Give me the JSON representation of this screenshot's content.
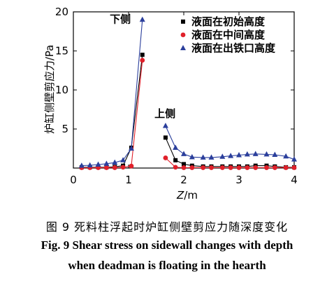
{
  "chart_data": {
    "type": "line",
    "xlabel_var": "Z",
    "xlabel_unit": "/m",
    "ylabel": "炉缸侧壁剪应力/Pa",
    "xlim": [
      0,
      4
    ],
    "ylim": [
      0,
      20
    ],
    "xticks": [
      "0",
      "1",
      "2",
      "3",
      "4"
    ],
    "yticks": [
      "5",
      "10",
      "15",
      "20"
    ],
    "grid": false,
    "legend_position": "top-right",
    "annotations": [
      {
        "text": "下侧",
        "x": 0.85,
        "y": 18.6
      },
      {
        "text": "上侧",
        "x": 1.66,
        "y": 6.5
      }
    ],
    "series": [
      {
        "name": "液面在初始高度",
        "color": "#000000",
        "marker": "square",
        "segments": [
          {
            "x": [
              0.15,
              0.3,
              0.45,
              0.6,
              0.75,
              0.9,
              1.05,
              1.25
            ],
            "y": [
              0.1,
              0.1,
              0.1,
              0.1,
              0.15,
              0.3,
              2.6,
              14.5
            ]
          },
          {
            "x": [
              1.67,
              1.85,
              2.0,
              2.15,
              2.35,
              2.5,
              2.7,
              2.85,
              3.0,
              3.15,
              3.3,
              3.5,
              3.65,
              3.85,
              4.0
            ],
            "y": [
              3.9,
              1.0,
              0.5,
              0.3,
              0.2,
              0.2,
              0.2,
              0.2,
              0.2,
              0.2,
              0.3,
              0.3,
              0.2,
              0.1,
              0.1
            ]
          }
        ]
      },
      {
        "name": "液面在中间高度",
        "color": "#e0202a",
        "marker": "circle",
        "segments": [
          {
            "x": [
              0.15,
              0.3,
              0.45,
              0.6,
              0.75,
              0.9,
              1.05,
              1.25
            ],
            "y": [
              0.05,
              0.05,
              0.05,
              0.05,
              0.05,
              0.1,
              0.25,
              13.8
            ]
          },
          {
            "x": [
              1.67,
              1.85,
              2.0,
              2.15,
              2.35,
              2.5,
              2.7,
              2.85,
              3.0,
              3.15,
              3.3,
              3.5,
              3.65,
              3.85,
              4.0
            ],
            "y": [
              1.3,
              0.1,
              0.05,
              0.05,
              0.05,
              0.05,
              0.05,
              0.05,
              0.05,
              0.05,
              0.05,
              0.05,
              0.05,
              0.05,
              0.05
            ]
          }
        ]
      },
      {
        "name": "液面在出铁口高度",
        "color": "#2b3f9c",
        "marker": "triangle",
        "segments": [
          {
            "x": [
              0.15,
              0.3,
              0.45,
              0.6,
              0.75,
              0.9,
              1.05,
              1.25
            ],
            "y": [
              0.3,
              0.35,
              0.45,
              0.55,
              0.7,
              1.0,
              2.5,
              19.0
            ]
          },
          {
            "x": [
              1.67,
              1.85,
              2.0,
              2.15,
              2.35,
              2.5,
              2.7,
              2.85,
              3.0,
              3.15,
              3.3,
              3.5,
              3.65,
              3.85,
              4.0
            ],
            "y": [
              5.4,
              2.6,
              1.8,
              1.4,
              1.35,
              1.35,
              1.45,
              1.55,
              1.65,
              1.75,
              1.8,
              1.75,
              1.7,
              1.5,
              1.1
            ]
          }
        ]
      }
    ]
  },
  "caption": {
    "cn": "图 9   死料柱浮起时炉缸侧壁剪应力随深度变化",
    "en_line1": "Fig. 9   Shear stress on sidewall changes with depth",
    "en_line2": "when deadman is floating in the hearth"
  }
}
